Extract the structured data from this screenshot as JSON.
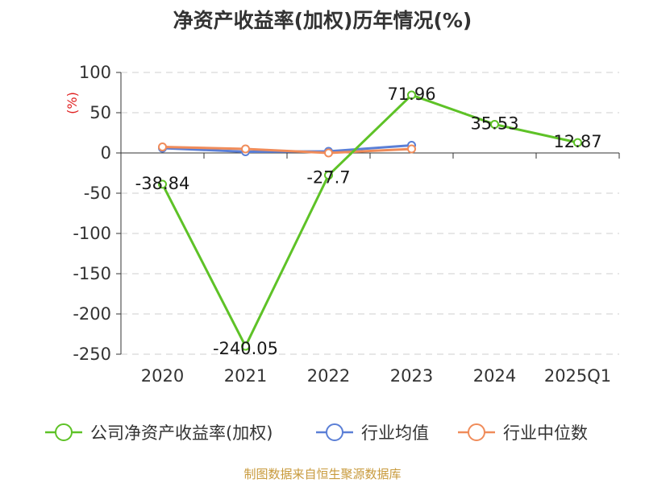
{
  "chart_data": {
    "type": "line",
    "title": "净资产收益率(加权)历年情况(%)",
    "ylabel": "(%)",
    "categories": [
      "2020",
      "2021",
      "2022",
      "2023",
      "2024",
      "2025Q1"
    ],
    "ylim": [
      -250,
      100
    ],
    "yticks": [
      100,
      50,
      0,
      -50,
      -100,
      -150,
      -200,
      -250
    ],
    "ytick_labels": [
      "100",
      "50",
      "0",
      "-50",
      "-100",
      "-150",
      "-200",
      "-250"
    ],
    "grid": true,
    "legend_position": "bottom",
    "series": [
      {
        "name": "公司净资产收益率(加权)",
        "color": "#5ec227",
        "values": [
          -38.84,
          -240.05,
          -27.7,
          71.96,
          35.53,
          12.87
        ],
        "labels": [
          "-38.84",
          "-240.05",
          "-27.7",
          "71.96",
          "35.53",
          "12.87"
        ]
      },
      {
        "name": "行业均值",
        "color": "#5b7fd6",
        "values": [
          6.0,
          1.5,
          2.0,
          9.5,
          null,
          null
        ]
      },
      {
        "name": "行业中位数",
        "color": "#f08c5a",
        "values": [
          7.5,
          5.0,
          0.0,
          5.0,
          null,
          null
        ]
      }
    ]
  },
  "footer": "制图数据来自恒生聚源数据库"
}
